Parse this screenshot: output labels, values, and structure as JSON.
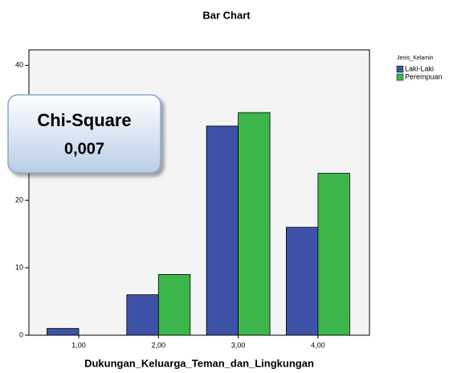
{
  "chart_data": {
    "type": "bar",
    "title": "Bar Chart",
    "x_label": "Dukungan_Keluarga_Teman_dan_Lingkungan",
    "categories": [
      "1,00",
      "2,00",
      "3,00",
      "4,00"
    ],
    "legend_title": "Jenis_Kelamin",
    "series": [
      {
        "name": "Laki-Laki",
        "color": "#3d52a6",
        "values": [
          1,
          6,
          31,
          16
        ]
      },
      {
        "name": "Perempuan",
        "color": "#3cb64b",
        "values": [
          0,
          9,
          33,
          24
        ]
      }
    ],
    "ylim": [
      0,
      42.3
    ],
    "yticks": [
      0,
      10,
      20,
      30,
      40
    ],
    "annotation": {
      "title": "Chi-Square",
      "value": "0,007"
    }
  }
}
